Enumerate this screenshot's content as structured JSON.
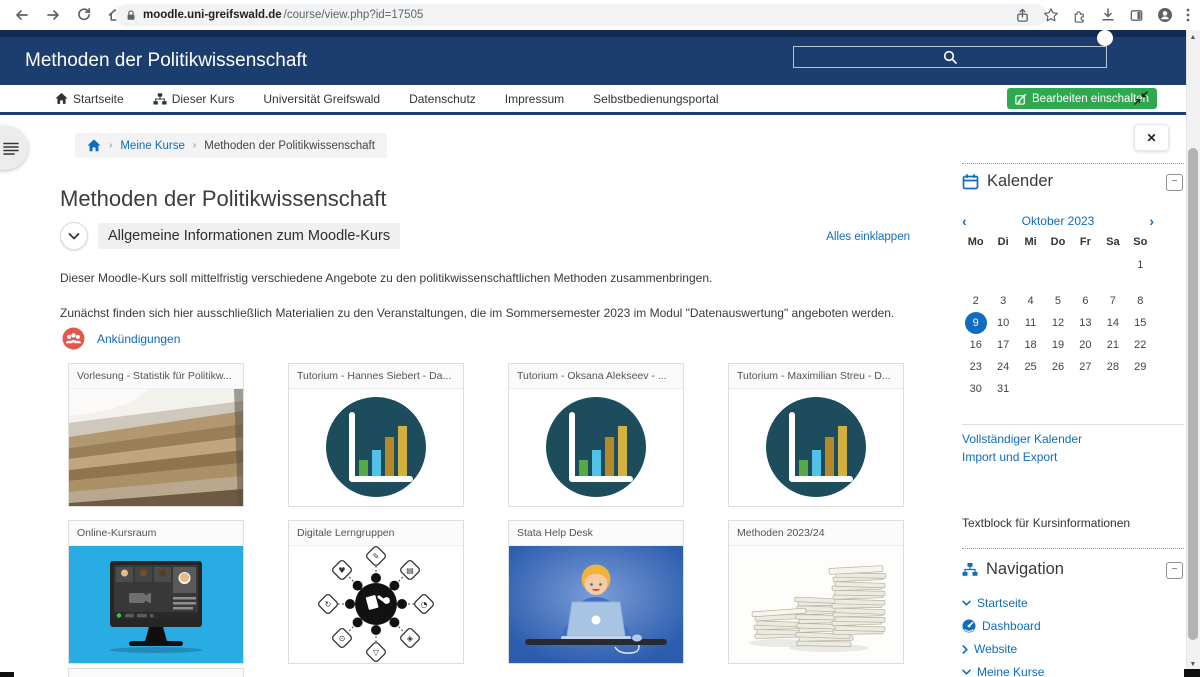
{
  "browser": {
    "url_host": "moodle.uni-greifswald.de",
    "url_path": "/course/view.php?id=17505"
  },
  "header": {
    "site_title": "Methoden der Politikwissenschaft"
  },
  "navbar": {
    "items": [
      {
        "label": "Startseite"
      },
      {
        "label": "Dieser Kurs"
      },
      {
        "label": "Universität Greifswald"
      },
      {
        "label": "Datenschutz"
      },
      {
        "label": "Impressum"
      },
      {
        "label": "Selbstbedienungsportal"
      }
    ],
    "edit_button_label": "Bearbeiten einschalten"
  },
  "breadcrumb": {
    "items": [
      "Meine Kurse",
      "Methoden der Politikwissenschaft"
    ]
  },
  "main": {
    "page_title": "Methoden der Politikwissenschaft",
    "section": {
      "title": "Allgemeine Informationen zum Moodle-Kurs",
      "collapse_all": "Alles einklappen",
      "paragraph1": "Dieser Moodle-Kurs soll mittelfristig verschiedene Angebote zu den politikwissenschaftlichen Methoden zusammenbringen.",
      "paragraph2": "Zunächst finden sich hier ausschließlich Materialien zu den Veranstaltungen, die im Sommersemester 2023 im Modul \"Datenauswertung\" angeboten werden.",
      "announcements_label": "Ankündigungen"
    },
    "tiles": [
      {
        "title": "Vorlesung - Statistik für Politikw...",
        "image": "lecture-hall-photo"
      },
      {
        "title": "Tutorium - Hannes Siebert - Da...",
        "image": "bar-chart-logo"
      },
      {
        "title": "Tutorium - Oksana Alekseev - ...",
        "image": "bar-chart-logo"
      },
      {
        "title": "Tutorium - Maximilian Streu - D...",
        "image": "bar-chart-logo"
      },
      {
        "title": "Online-Kursraum",
        "image": "video-conference-illustration"
      },
      {
        "title": "Digitale Lerngruppen",
        "image": "collaboration-network-illustration"
      },
      {
        "title": "Stata Help Desk",
        "image": "person-laptop-illustration"
      },
      {
        "title": "Methoden 2023/24",
        "image": "paper-stacks-illustration"
      }
    ]
  },
  "sidebar": {
    "calendar": {
      "title": "Kalender",
      "month_label": "Oktober 2023",
      "prev_arrow": "‹",
      "next_arrow": "›",
      "weekdays": [
        "Mo",
        "Di",
        "Mi",
        "Do",
        "Fr",
        "Sa",
        "So"
      ],
      "weeks": [
        [
          "",
          "",
          "",
          "",
          "",
          "",
          "1"
        ],
        [
          "2",
          "3",
          "4",
          "5",
          "6",
          "7",
          "8"
        ],
        [
          "9",
          "10",
          "11",
          "12",
          "13",
          "14",
          "15"
        ],
        [
          "16",
          "17",
          "18",
          "19",
          "20",
          "21",
          "22"
        ],
        [
          "23",
          "24",
          "25",
          "26",
          "27",
          "28",
          "29"
        ],
        [
          "30",
          "31",
          "",
          "",
          "",
          "",
          ""
        ]
      ],
      "selected_day": "9",
      "links": [
        {
          "label": "Vollständiger Kalender"
        },
        {
          "label": "Import und Export"
        }
      ],
      "collapse_glyph": "−"
    },
    "textblock": "Textblock für Kursinformationen",
    "navigation": {
      "title": "Navigation",
      "items": [
        {
          "label": "Startseite",
          "prefix": "chevron-down"
        },
        {
          "label": "Dashboard",
          "prefix": "gauge-icon"
        },
        {
          "label": "Website",
          "prefix": "chevron-right"
        },
        {
          "label": "Meine Kurse",
          "prefix": "chevron-down"
        }
      ],
      "collapse_glyph": "−"
    }
  },
  "misc": {
    "close_glyph": "✕"
  },
  "colors": {
    "header_navy": "#1b3e6e",
    "top_strip_navy": "#0f2b51",
    "link_blue": "#0f6cbf",
    "edit_green": "#2fa84f",
    "announcement_red": "#e2574c",
    "tile_circle_teal": "#1d4d5c",
    "online_cyan": "#29abe3",
    "stata_blue": "#2b5cad"
  }
}
